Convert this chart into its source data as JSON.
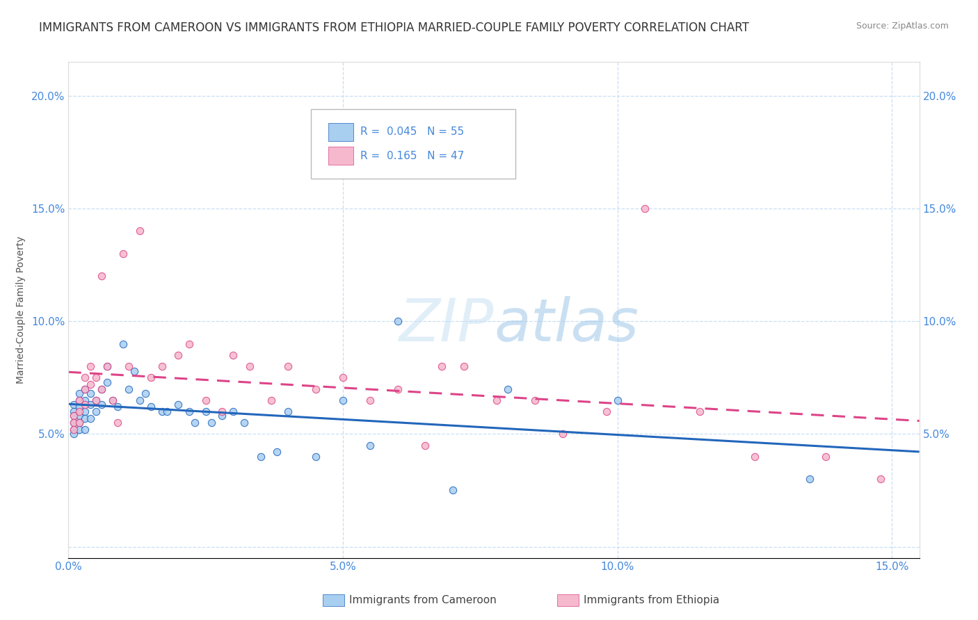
{
  "title": "IMMIGRANTS FROM CAMEROON VS IMMIGRANTS FROM ETHIOPIA MARRIED-COUPLE FAMILY POVERTY CORRELATION CHART",
  "source": "Source: ZipAtlas.com",
  "ylabel": "Married-Couple Family Poverty",
  "xlim": [
    0.0,
    0.155
  ],
  "ylim": [
    -0.005,
    0.215
  ],
  "xticks": [
    0.0,
    0.05,
    0.1,
    0.15
  ],
  "xtick_labels": [
    "0.0%",
    "5.0%",
    "10.0%",
    "15.0%"
  ],
  "yticks": [
    0.0,
    0.05,
    0.1,
    0.15,
    0.2
  ],
  "ytick_labels": [
    "",
    "5.0%",
    "10.0%",
    "15.0%",
    "20.0%"
  ],
  "R_cameroon": 0.045,
  "N_cameroon": 55,
  "R_ethiopia": 0.165,
  "N_ethiopia": 47,
  "cameroon_color": "#a8cef0",
  "ethiopia_color": "#f5b8cc",
  "cameroon_line_color": "#2266bb",
  "ethiopia_line_color": "#dd4488",
  "watermark_text": "ZIPatlas",
  "title_fontsize": 12,
  "axis_label_fontsize": 10,
  "tick_fontsize": 11,
  "legend_text_color": "#4488dd",
  "background_color": "#ffffff",
  "scatter_alpha": 0.85,
  "scatter_size": 55,
  "cameroon_x": [
    0.001,
    0.001,
    0.001,
    0.001,
    0.001,
    0.001,
    0.002,
    0.002,
    0.002,
    0.002,
    0.002,
    0.002,
    0.003,
    0.003,
    0.003,
    0.003,
    0.003,
    0.004,
    0.004,
    0.004,
    0.005,
    0.005,
    0.006,
    0.006,
    0.007,
    0.007,
    0.008,
    0.009,
    0.01,
    0.011,
    0.012,
    0.013,
    0.014,
    0.015,
    0.017,
    0.018,
    0.02,
    0.022,
    0.023,
    0.025,
    0.026,
    0.028,
    0.03,
    0.032,
    0.035,
    0.038,
    0.04,
    0.045,
    0.05,
    0.055,
    0.06,
    0.07,
    0.08,
    0.1,
    0.135
  ],
  "cameroon_y": [
    0.063,
    0.06,
    0.058,
    0.055,
    0.052,
    0.05,
    0.068,
    0.065,
    0.062,
    0.058,
    0.055,
    0.052,
    0.07,
    0.065,
    0.06,
    0.057,
    0.052,
    0.068,
    0.063,
    0.057,
    0.065,
    0.06,
    0.07,
    0.063,
    0.08,
    0.073,
    0.065,
    0.062,
    0.09,
    0.07,
    0.078,
    0.065,
    0.068,
    0.062,
    0.06,
    0.06,
    0.063,
    0.06,
    0.055,
    0.06,
    0.055,
    0.058,
    0.06,
    0.055,
    0.04,
    0.042,
    0.06,
    0.04,
    0.065,
    0.045,
    0.1,
    0.025,
    0.07,
    0.065,
    0.03
  ],
  "ethiopia_x": [
    0.001,
    0.001,
    0.001,
    0.002,
    0.002,
    0.002,
    0.003,
    0.003,
    0.003,
    0.004,
    0.004,
    0.005,
    0.005,
    0.006,
    0.006,
    0.007,
    0.008,
    0.009,
    0.01,
    0.011,
    0.013,
    0.015,
    0.017,
    0.02,
    0.022,
    0.025,
    0.028,
    0.03,
    0.033,
    0.037,
    0.04,
    0.045,
    0.05,
    0.055,
    0.06,
    0.065,
    0.068,
    0.072,
    0.078,
    0.085,
    0.09,
    0.098,
    0.105,
    0.115,
    0.125,
    0.138,
    0.148
  ],
  "ethiopia_y": [
    0.058,
    0.055,
    0.052,
    0.065,
    0.06,
    0.055,
    0.075,
    0.07,
    0.063,
    0.08,
    0.072,
    0.075,
    0.065,
    0.12,
    0.07,
    0.08,
    0.065,
    0.055,
    0.13,
    0.08,
    0.14,
    0.075,
    0.08,
    0.085,
    0.09,
    0.065,
    0.06,
    0.085,
    0.08,
    0.065,
    0.08,
    0.07,
    0.075,
    0.065,
    0.07,
    0.045,
    0.08,
    0.08,
    0.065,
    0.065,
    0.05,
    0.06,
    0.15,
    0.06,
    0.04,
    0.04,
    0.03
  ]
}
